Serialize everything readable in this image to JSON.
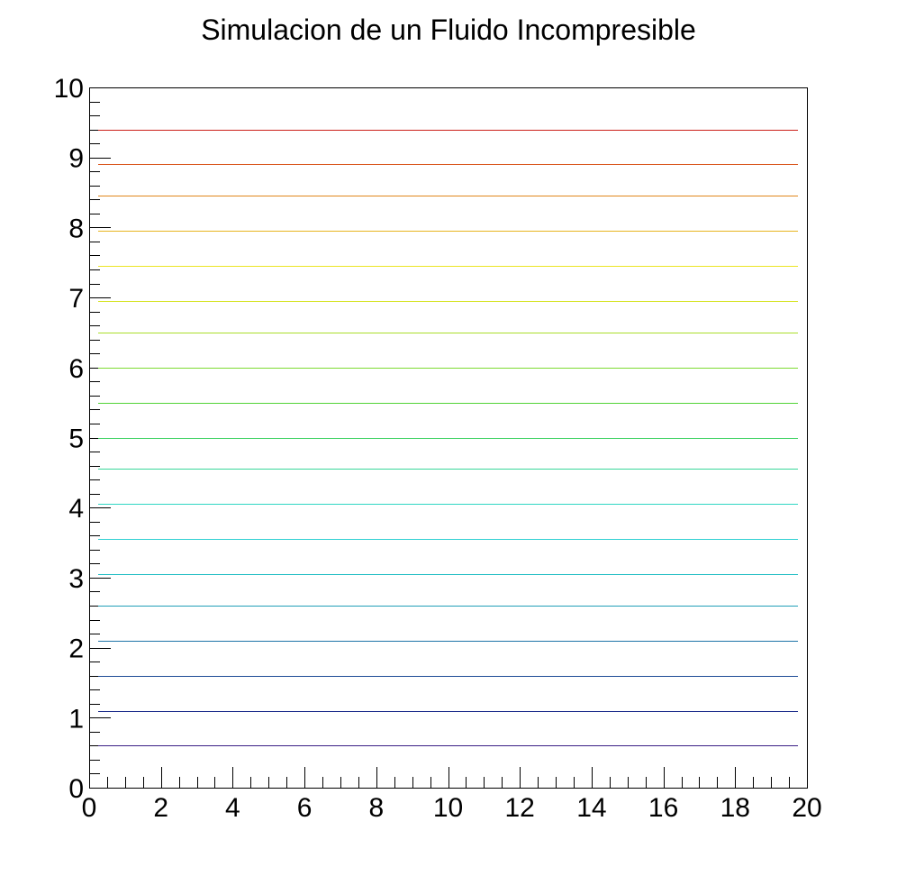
{
  "chart_data": {
    "type": "line",
    "title": "Simulacion de un Fluido Incompresible",
    "xlim": [
      0,
      20
    ],
    "ylim": [
      0,
      10
    ],
    "x_ticks": [
      "0",
      "2",
      "4",
      "6",
      "8",
      "10",
      "12",
      "14",
      "16",
      "18",
      "20"
    ],
    "y_ticks": [
      "0",
      "1",
      "2",
      "3",
      "4",
      "5",
      "6",
      "7",
      "8",
      "9",
      "10"
    ],
    "grid": false,
    "legend": "none",
    "series": [
      {
        "x": [
          0.25,
          19.75
        ],
        "y": [
          0.6,
          0.6
        ],
        "color": "#3b1f86"
      },
      {
        "x": [
          0.25,
          19.75
        ],
        "y": [
          1.1,
          1.1
        ],
        "color": "#1a2a8a"
      },
      {
        "x": [
          0.25,
          19.75
        ],
        "y": [
          1.6,
          1.6
        ],
        "color": "#1d4a96"
      },
      {
        "x": [
          0.25,
          19.75
        ],
        "y": [
          2.1,
          2.1
        ],
        "color": "#1e74a8"
      },
      {
        "x": [
          0.25,
          19.75
        ],
        "y": [
          2.6,
          2.6
        ],
        "color": "#22a0b8"
      },
      {
        "x": [
          0.25,
          19.75
        ],
        "y": [
          3.05,
          3.05
        ],
        "color": "#27bfc6"
      },
      {
        "x": [
          0.25,
          19.75
        ],
        "y": [
          3.55,
          3.55
        ],
        "color": "#2fd0d3"
      },
      {
        "x": [
          0.25,
          19.75
        ],
        "y": [
          4.05,
          4.05
        ],
        "color": "#30d6c4"
      },
      {
        "x": [
          0.25,
          19.75
        ],
        "y": [
          4.55,
          4.55
        ],
        "color": "#39d79a"
      },
      {
        "x": [
          0.25,
          19.75
        ],
        "y": [
          5.0,
          5.0
        ],
        "color": "#3fd364"
      },
      {
        "x": [
          0.25,
          19.75
        ],
        "y": [
          5.5,
          5.5
        ],
        "color": "#52d437"
      },
      {
        "x": [
          0.25,
          19.75
        ],
        "y": [
          6.0,
          6.0
        ],
        "color": "#7edb32"
      },
      {
        "x": [
          0.25,
          19.75
        ],
        "y": [
          6.5,
          6.5
        ],
        "color": "#aade2a"
      },
      {
        "x": [
          0.25,
          19.75
        ],
        "y": [
          6.95,
          6.95
        ],
        "color": "#d6e425"
      },
      {
        "x": [
          0.25,
          19.75
        ],
        "y": [
          7.45,
          7.45
        ],
        "color": "#ece524"
      },
      {
        "x": [
          0.25,
          19.75
        ],
        "y": [
          7.95,
          7.95
        ],
        "color": "#e7b51f"
      },
      {
        "x": [
          0.25,
          19.75
        ],
        "y": [
          8.45,
          8.45
        ],
        "color": "#e0871c"
      },
      {
        "x": [
          0.25,
          19.75
        ],
        "y": [
          8.9,
          8.9
        ],
        "color": "#d9541b"
      },
      {
        "x": [
          0.25,
          19.75
        ],
        "y": [
          9.4,
          9.4
        ],
        "color": "#cc1f1a"
      }
    ]
  }
}
